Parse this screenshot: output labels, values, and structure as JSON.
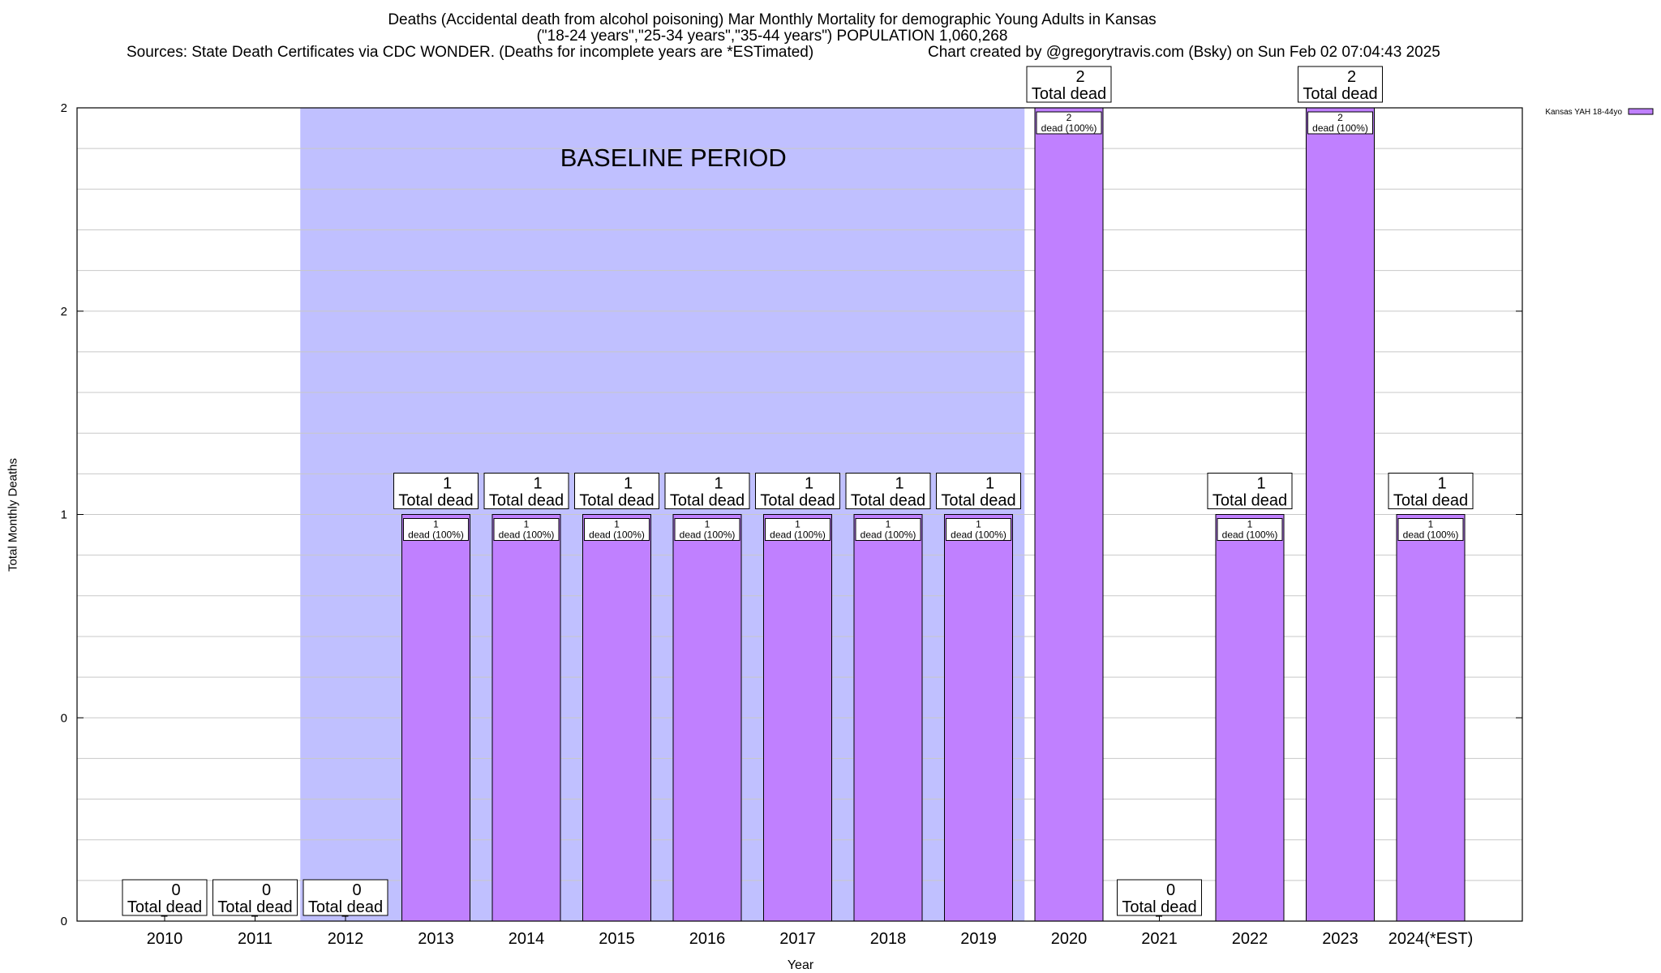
{
  "chart_data": {
    "type": "bar",
    "title": "Deaths (Accidental death from alcohol poisoning) Mar Monthly Mortality for demographic Young Adults in Kansas",
    "subtitle": "(\"18-24 years\",\"25-34 years\",\"35-44 years\") POPULATION 1,060,268",
    "source": "Sources: State Death Certificates via CDC WONDER. (Deaths for incomplete years are *ESTimated)",
    "credit": "Chart created by @gregorytravis.com (Bsky) on Sun Feb 02 07:04:43 2025",
    "xlabel": "Year",
    "ylabel": "Total Monthly Deaths",
    "ylim": [
      0,
      2
    ],
    "y_tick_labels": [
      "0",
      "0",
      "1",
      "2",
      "2"
    ],
    "categories": [
      "2010",
      "2011",
      "2012",
      "2013",
      "2014",
      "2015",
      "2016",
      "2017",
      "2018",
      "2019",
      "2020",
      "2021",
      "2022",
      "2023",
      "2024(*EST)"
    ],
    "series": [
      {
        "name": "Kansas YAH 18-44yo",
        "values": [
          0,
          0,
          0,
          1,
          1,
          1,
          1,
          1,
          1,
          1,
          2,
          0,
          1,
          2,
          1
        ]
      }
    ],
    "total_labels": [
      "0\nTotal dead",
      "0\nTotal dead",
      "0\nTotal dead",
      "1\nTotal dead",
      "1\nTotal dead",
      "1\nTotal dead",
      "1\nTotal dead",
      "1\nTotal dead",
      "1\nTotal dead",
      "1\nTotal dead",
      "2\nTotal dead",
      "0\nTotal dead",
      "1\nTotal dead",
      "2\nTotal dead",
      "1\nTotal dead"
    ],
    "inner_labels": [
      "",
      "",
      "",
      "1\ndead (100%)",
      "1\ndead (100%)",
      "1\ndead (100%)",
      "1\ndead (100%)",
      "1\ndead (100%)",
      "1\ndead (100%)",
      "1\ndead (100%)",
      "2\ndead (100%)",
      "",
      "1\ndead (100%)",
      "2\ndead (100%)",
      "1\ndead (100%)"
    ],
    "annotation": "BASELINE PERIOD",
    "baseline_range": [
      "2012",
      "2019"
    ],
    "grid": true,
    "legend_position": "top-right",
    "colors": {
      "bar": "#c080ff",
      "baseline": "#c0c0ff",
      "grid": "#c8c8c8"
    }
  }
}
